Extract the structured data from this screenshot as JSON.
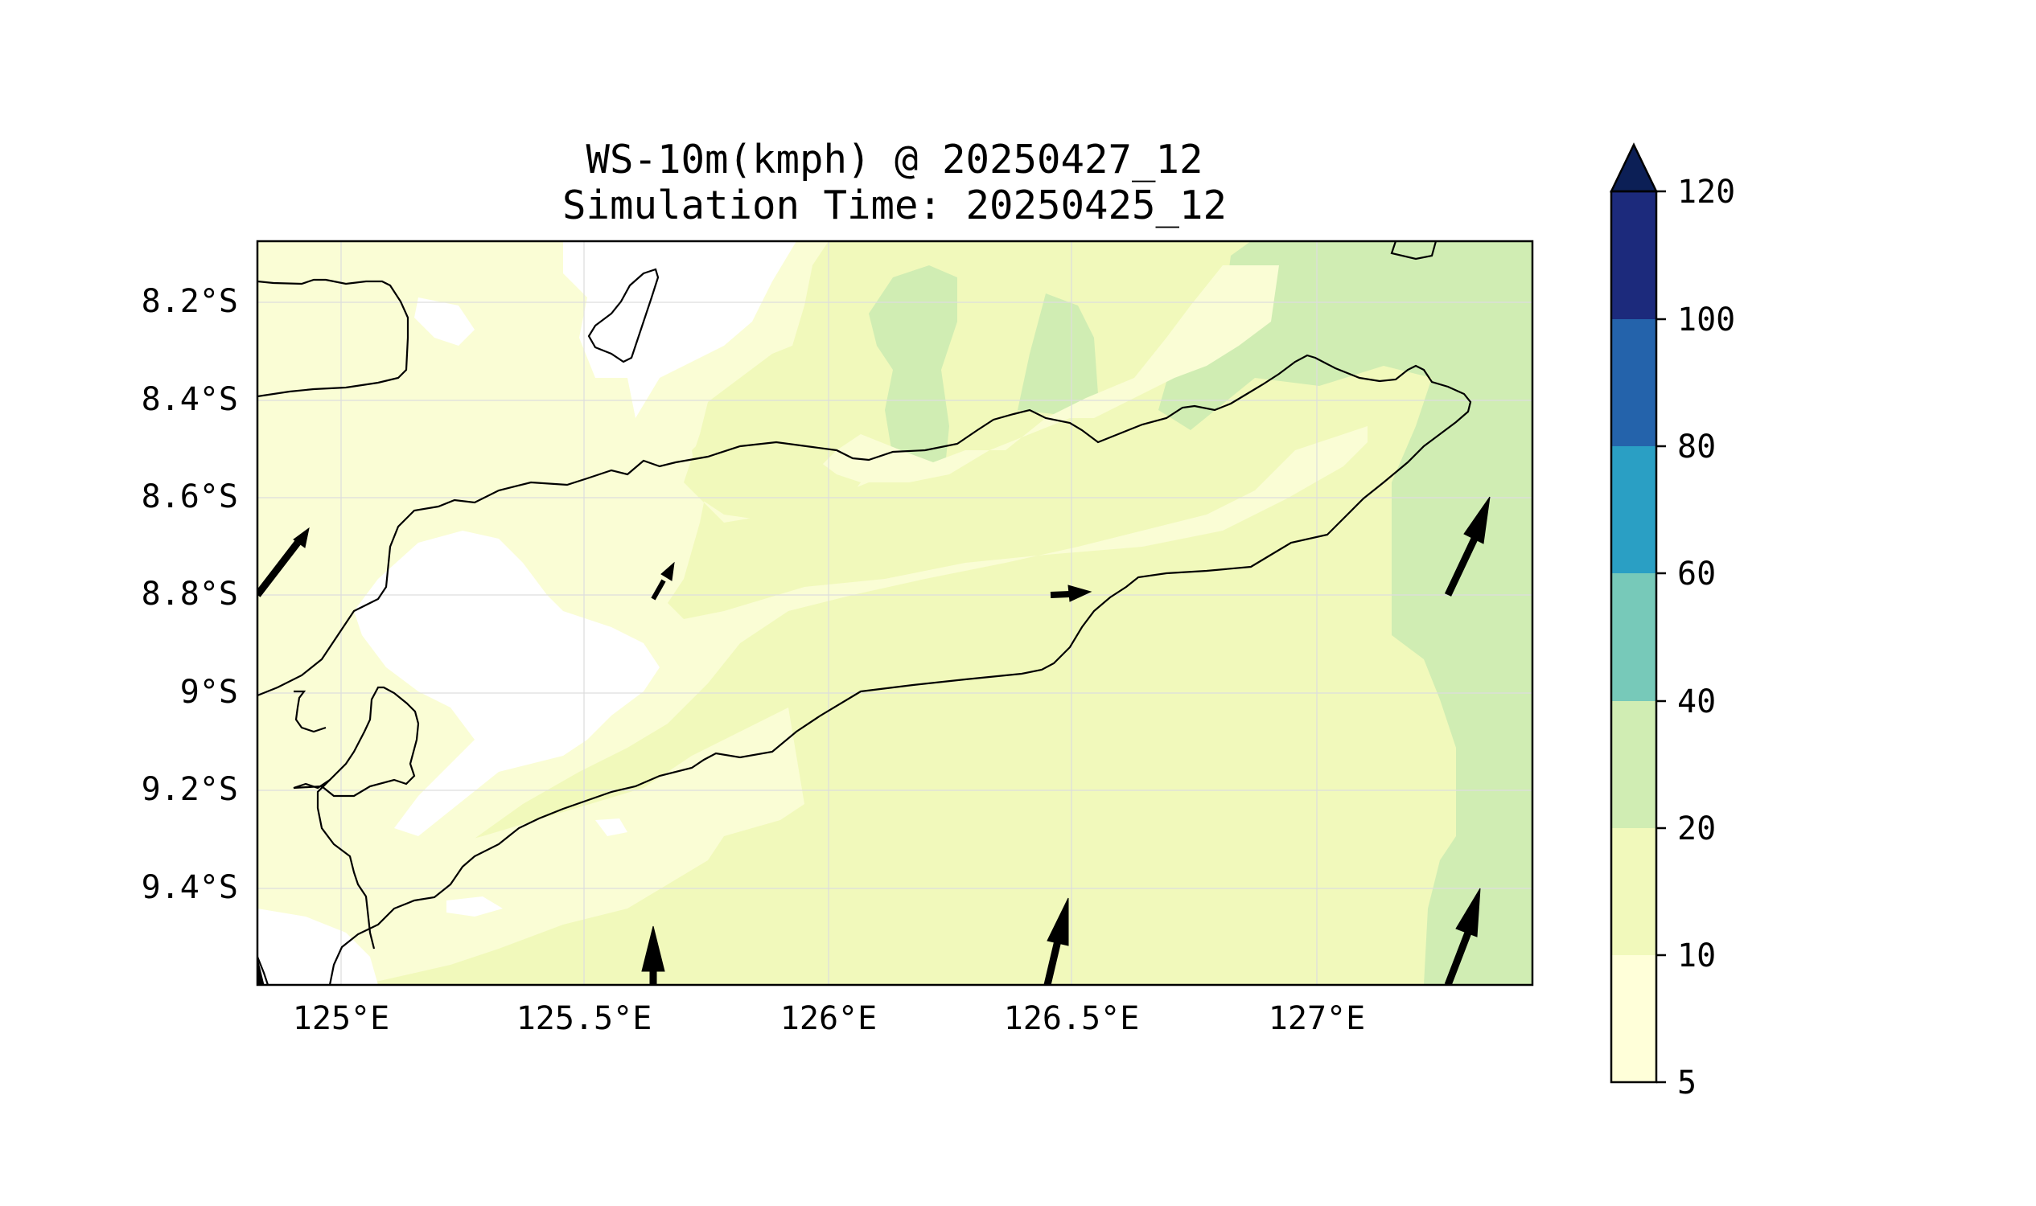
{
  "figure": {
    "title_line1": "WS-10m(kmph) @ 20250427_12",
    "title_line2": "Simulation Time: 20250425_12"
  },
  "map": {
    "x_ticks": [
      "125°E",
      "125.5°E",
      "126°E",
      "126.5°E",
      "127°E"
    ],
    "y_ticks": [
      "8.2°S",
      "8.4°S",
      "8.6°S",
      "8.8°S",
      "9°S",
      "9.2°S",
      "9.4°S"
    ],
    "gridlines": true
  },
  "colorbar": {
    "levels": [
      "5",
      "10",
      "20",
      "40",
      "60",
      "80",
      "100",
      "120"
    ],
    "colors": [
      "#ffffd9",
      "#f1f9bb",
      "#d0edb3",
      "#77c9b9",
      "#2a9fc4",
      "#2463ab",
      "#1c2a7c",
      "#0c1f56"
    ],
    "extend": "max"
  },
  "wind_arrows": [
    {
      "lon": 124.84,
      "lat": -8.79,
      "dir": "NE"
    },
    {
      "lon": 125.63,
      "lat": -8.81,
      "dir": "NE"
    },
    {
      "lon": 126.46,
      "lat": -8.8,
      "dir": "E"
    },
    {
      "lon": 127.27,
      "lat": -8.8,
      "dir": "NNE"
    },
    {
      "lon": 125.63,
      "lat": -9.59,
      "dir": "N"
    },
    {
      "lon": 126.45,
      "lat": -9.59,
      "dir": "N"
    },
    {
      "lon": 127.26,
      "lat": -9.59,
      "dir": "NNE"
    }
  ]
}
